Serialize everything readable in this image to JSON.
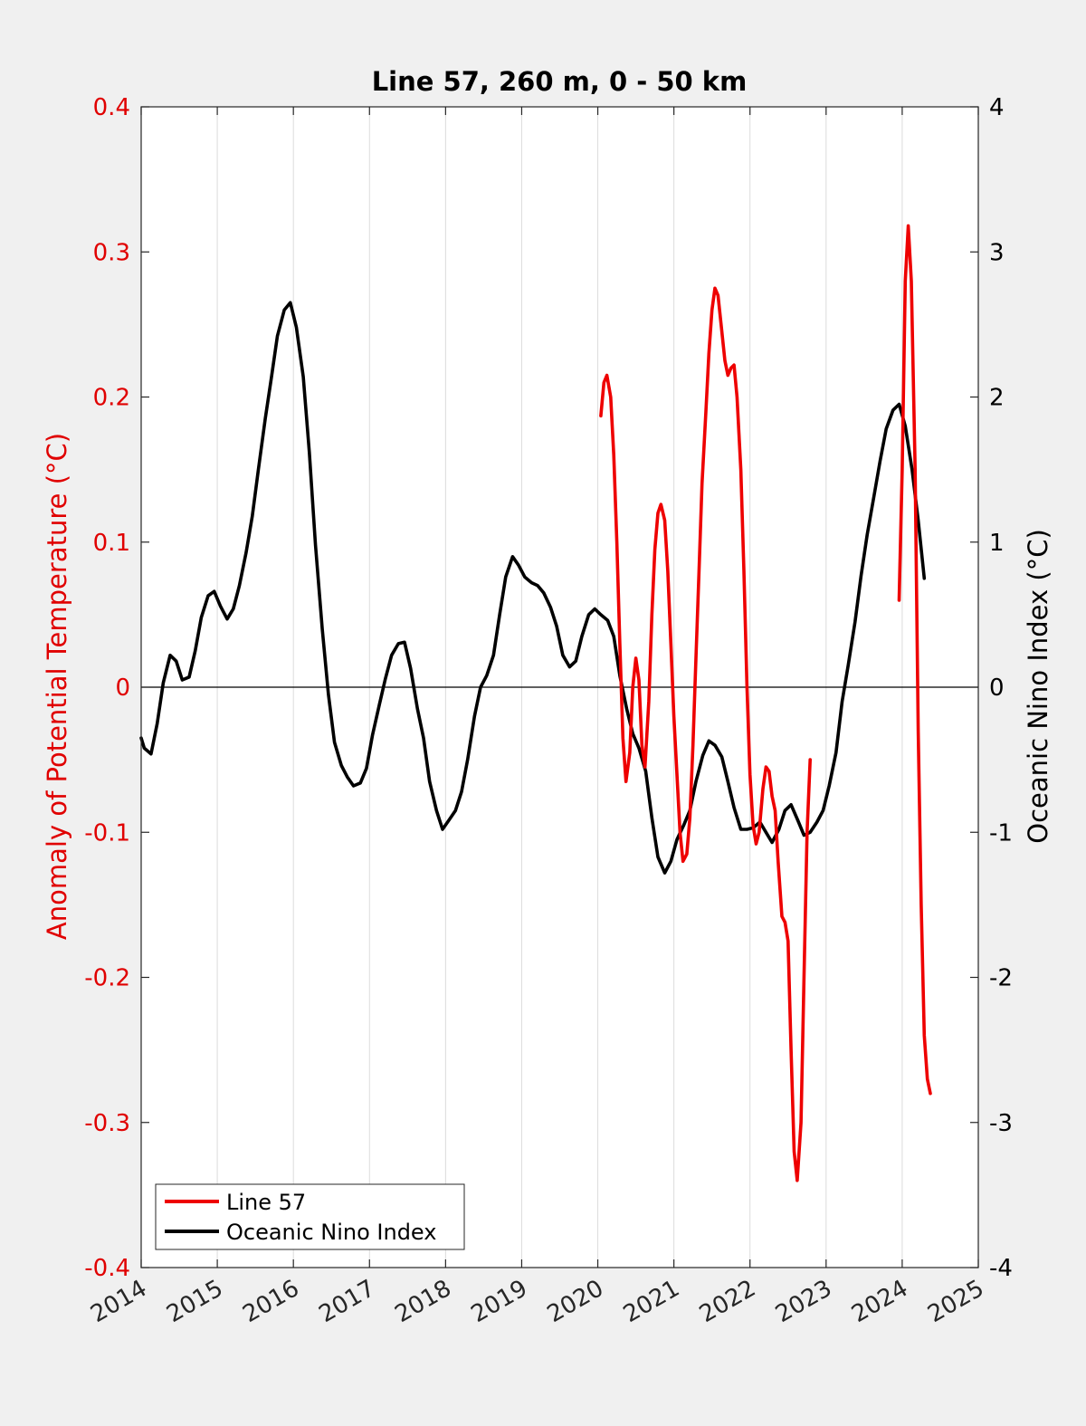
{
  "chart_data": {
    "type": "line",
    "title": "Line 57, 260 m, 0 - 50 km",
    "ylabel": "Anomaly of Potential Temperature (°C)",
    "ylabel_right": "Oceanic Nino Index (°C)",
    "xlabel": "",
    "xlim": [
      2014,
      2025
    ],
    "ylim": [
      -0.4,
      0.4
    ],
    "ylim_right": [
      -4,
      4
    ],
    "x_ticks": [
      "2014",
      "2015",
      "2016",
      "2017",
      "2018",
      "2019",
      "2020",
      "2021",
      "2022",
      "2023",
      "2024",
      "2025"
    ],
    "y_ticks": [
      "-0.4",
      "-0.3",
      "-0.2",
      "-0.1",
      "0",
      "0.1",
      "0.2",
      "0.3",
      "0.4"
    ],
    "y_ticks_right": [
      "-4",
      "-3",
      "-2",
      "-1",
      "0",
      "1",
      "2",
      "3",
      "4"
    ],
    "grid": "vertical",
    "legend_position": "bottom-left",
    "colors": {
      "left_axis": "#e00000",
      "line57": "#ee0000",
      "oni": "#000000",
      "background": "#f0f0f0",
      "plot_area": "#ffffff",
      "grid": "#dcdcdc"
    },
    "series": [
      {
        "name": "Line 57",
        "axis": "left",
        "points": [
          [
            2020.04,
            0.187
          ],
          [
            2020.08,
            0.21
          ],
          [
            2020.12,
            0.215
          ],
          [
            2020.17,
            0.2
          ],
          [
            2020.21,
            0.16
          ],
          [
            2020.25,
            0.1
          ],
          [
            2020.29,
            0.03
          ],
          [
            2020.33,
            -0.035
          ],
          [
            2020.37,
            -0.065
          ],
          [
            2020.42,
            -0.045
          ],
          [
            2020.46,
            0.0
          ],
          [
            2020.5,
            0.02
          ],
          [
            2020.54,
            0.005
          ],
          [
            2020.58,
            -0.04
          ],
          [
            2020.62,
            -0.055
          ],
          [
            2020.67,
            -0.01
          ],
          [
            2020.71,
            0.05
          ],
          [
            2020.75,
            0.095
          ],
          [
            2020.79,
            0.12
          ],
          [
            2020.83,
            0.126
          ],
          [
            2020.88,
            0.115
          ],
          [
            2020.92,
            0.08
          ],
          [
            2020.96,
            0.03
          ],
          [
            2021.0,
            -0.02
          ],
          [
            2021.04,
            -0.06
          ],
          [
            2021.08,
            -0.1
          ],
          [
            2021.12,
            -0.12
          ],
          [
            2021.17,
            -0.115
          ],
          [
            2021.21,
            -0.09
          ],
          [
            2021.25,
            -0.04
          ],
          [
            2021.29,
            0.02
          ],
          [
            2021.33,
            0.08
          ],
          [
            2021.37,
            0.14
          ],
          [
            2021.42,
            0.19
          ],
          [
            2021.46,
            0.23
          ],
          [
            2021.5,
            0.26
          ],
          [
            2021.54,
            0.275
          ],
          [
            2021.58,
            0.27
          ],
          [
            2021.62,
            0.25
          ],
          [
            2021.67,
            0.225
          ],
          [
            2021.71,
            0.215
          ],
          [
            2021.75,
            0.22
          ],
          [
            2021.79,
            0.222
          ],
          [
            2021.83,
            0.2
          ],
          [
            2021.88,
            0.15
          ],
          [
            2021.92,
            0.08
          ],
          [
            2021.96,
            0.0
          ],
          [
            2022.0,
            -0.06
          ],
          [
            2022.04,
            -0.095
          ],
          [
            2022.08,
            -0.108
          ],
          [
            2022.12,
            -0.1
          ],
          [
            2022.17,
            -0.07
          ],
          [
            2022.21,
            -0.055
          ],
          [
            2022.25,
            -0.058
          ],
          [
            2022.29,
            -0.075
          ],
          [
            2022.33,
            -0.085
          ],
          [
            2022.37,
            -0.12
          ],
          [
            2022.42,
            -0.158
          ],
          [
            2022.46,
            -0.162
          ],
          [
            2022.5,
            -0.175
          ],
          [
            2022.54,
            -0.25
          ],
          [
            2022.58,
            -0.32
          ],
          [
            2022.62,
            -0.34
          ],
          [
            2022.67,
            -0.3
          ],
          [
            2022.71,
            -0.2
          ],
          [
            2022.75,
            -0.1
          ],
          [
            2022.79,
            -0.05
          ]
        ]
      },
      {
        "name": "Line 57",
        "axis": "left",
        "points": [
          [
            2023.96,
            0.06
          ],
          [
            2024.0,
            0.15
          ],
          [
            2024.04,
            0.28
          ],
          [
            2024.08,
            0.318
          ],
          [
            2024.12,
            0.28
          ],
          [
            2024.17,
            0.15
          ],
          [
            2024.21,
            -0.03
          ],
          [
            2024.25,
            -0.15
          ],
          [
            2024.29,
            -0.24
          ],
          [
            2024.33,
            -0.27
          ],
          [
            2024.37,
            -0.28
          ]
        ]
      },
      {
        "name": "Oceanic Nino Index",
        "axis": "right",
        "points": [
          [
            2014.0,
            -0.35
          ],
          [
            2014.04,
            -0.42
          ],
          [
            2014.13,
            -0.46
          ],
          [
            2014.21,
            -0.25
          ],
          [
            2014.29,
            0.03
          ],
          [
            2014.38,
            0.22
          ],
          [
            2014.46,
            0.18
          ],
          [
            2014.54,
            0.05
          ],
          [
            2014.63,
            0.07
          ],
          [
            2014.71,
            0.25
          ],
          [
            2014.79,
            0.48
          ],
          [
            2014.88,
            0.63
          ],
          [
            2014.96,
            0.66
          ],
          [
            2015.04,
            0.56
          ],
          [
            2015.13,
            0.47
          ],
          [
            2015.21,
            0.54
          ],
          [
            2015.29,
            0.7
          ],
          [
            2015.38,
            0.93
          ],
          [
            2015.46,
            1.18
          ],
          [
            2015.54,
            1.5
          ],
          [
            2015.63,
            1.85
          ],
          [
            2015.71,
            2.13
          ],
          [
            2015.79,
            2.42
          ],
          [
            2015.88,
            2.6
          ],
          [
            2015.96,
            2.65
          ],
          [
            2016.04,
            2.48
          ],
          [
            2016.13,
            2.14
          ],
          [
            2016.21,
            1.62
          ],
          [
            2016.29,
            0.98
          ],
          [
            2016.38,
            0.4
          ],
          [
            2016.46,
            -0.05
          ],
          [
            2016.54,
            -0.38
          ],
          [
            2016.63,
            -0.54
          ],
          [
            2016.71,
            -0.62
          ],
          [
            2016.79,
            -0.68
          ],
          [
            2016.88,
            -0.66
          ],
          [
            2016.96,
            -0.56
          ],
          [
            2017.04,
            -0.33
          ],
          [
            2017.13,
            -0.12
          ],
          [
            2017.21,
            0.06
          ],
          [
            2017.29,
            0.22
          ],
          [
            2017.38,
            0.3
          ],
          [
            2017.46,
            0.31
          ],
          [
            2017.54,
            0.13
          ],
          [
            2017.63,
            -0.15
          ],
          [
            2017.71,
            -0.35
          ],
          [
            2017.79,
            -0.65
          ],
          [
            2017.88,
            -0.85
          ],
          [
            2017.96,
            -0.98
          ],
          [
            2018.04,
            -0.92
          ],
          [
            2018.13,
            -0.85
          ],
          [
            2018.21,
            -0.72
          ],
          [
            2018.29,
            -0.5
          ],
          [
            2018.38,
            -0.2
          ],
          [
            2018.46,
            0.0
          ],
          [
            2018.54,
            0.08
          ],
          [
            2018.63,
            0.22
          ],
          [
            2018.71,
            0.5
          ],
          [
            2018.79,
            0.76
          ],
          [
            2018.88,
            0.9
          ],
          [
            2018.96,
            0.84
          ],
          [
            2019.04,
            0.76
          ],
          [
            2019.13,
            0.72
          ],
          [
            2019.21,
            0.7
          ],
          [
            2019.29,
            0.65
          ],
          [
            2019.38,
            0.55
          ],
          [
            2019.46,
            0.42
          ],
          [
            2019.54,
            0.22
          ],
          [
            2019.63,
            0.14
          ],
          [
            2019.71,
            0.18
          ],
          [
            2019.79,
            0.35
          ],
          [
            2019.88,
            0.5
          ],
          [
            2019.96,
            0.54
          ],
          [
            2020.04,
            0.5
          ],
          [
            2020.13,
            0.46
          ],
          [
            2020.21,
            0.35
          ],
          [
            2020.29,
            0.08
          ],
          [
            2020.38,
            -0.15
          ],
          [
            2020.46,
            -0.32
          ],
          [
            2020.54,
            -0.42
          ],
          [
            2020.63,
            -0.58
          ],
          [
            2020.71,
            -0.9
          ],
          [
            2020.79,
            -1.17
          ],
          [
            2020.88,
            -1.28
          ],
          [
            2020.96,
            -1.2
          ],
          [
            2021.04,
            -1.05
          ],
          [
            2021.13,
            -0.95
          ],
          [
            2021.21,
            -0.85
          ],
          [
            2021.29,
            -0.65
          ],
          [
            2021.38,
            -0.47
          ],
          [
            2021.46,
            -0.37
          ],
          [
            2021.54,
            -0.4
          ],
          [
            2021.63,
            -0.48
          ],
          [
            2021.71,
            -0.65
          ],
          [
            2021.79,
            -0.83
          ],
          [
            2021.88,
            -0.98
          ],
          [
            2021.96,
            -0.98
          ],
          [
            2022.04,
            -0.97
          ],
          [
            2022.13,
            -0.93
          ],
          [
            2022.21,
            -1.0
          ],
          [
            2022.29,
            -1.07
          ],
          [
            2022.38,
            -0.98
          ],
          [
            2022.46,
            -0.85
          ],
          [
            2022.54,
            -0.81
          ],
          [
            2022.63,
            -0.92
          ],
          [
            2022.71,
            -1.02
          ],
          [
            2022.79,
            -1.0
          ],
          [
            2022.88,
            -0.93
          ],
          [
            2022.96,
            -0.85
          ],
          [
            2023.04,
            -0.68
          ],
          [
            2023.13,
            -0.45
          ],
          [
            2023.21,
            -0.1
          ],
          [
            2023.29,
            0.15
          ],
          [
            2023.38,
            0.45
          ],
          [
            2023.46,
            0.77
          ],
          [
            2023.54,
            1.05
          ],
          [
            2023.63,
            1.32
          ],
          [
            2023.71,
            1.56
          ],
          [
            2023.79,
            1.78
          ],
          [
            2023.88,
            1.91
          ],
          [
            2023.96,
            1.95
          ],
          [
            2024.04,
            1.8
          ],
          [
            2024.13,
            1.5
          ],
          [
            2024.21,
            1.15
          ],
          [
            2024.29,
            0.75
          ]
        ]
      }
    ],
    "legend": [
      {
        "label": "Line 57",
        "color": "#ee0000"
      },
      {
        "label": "Oceanic Nino Index",
        "color": "#000000"
      }
    ]
  }
}
